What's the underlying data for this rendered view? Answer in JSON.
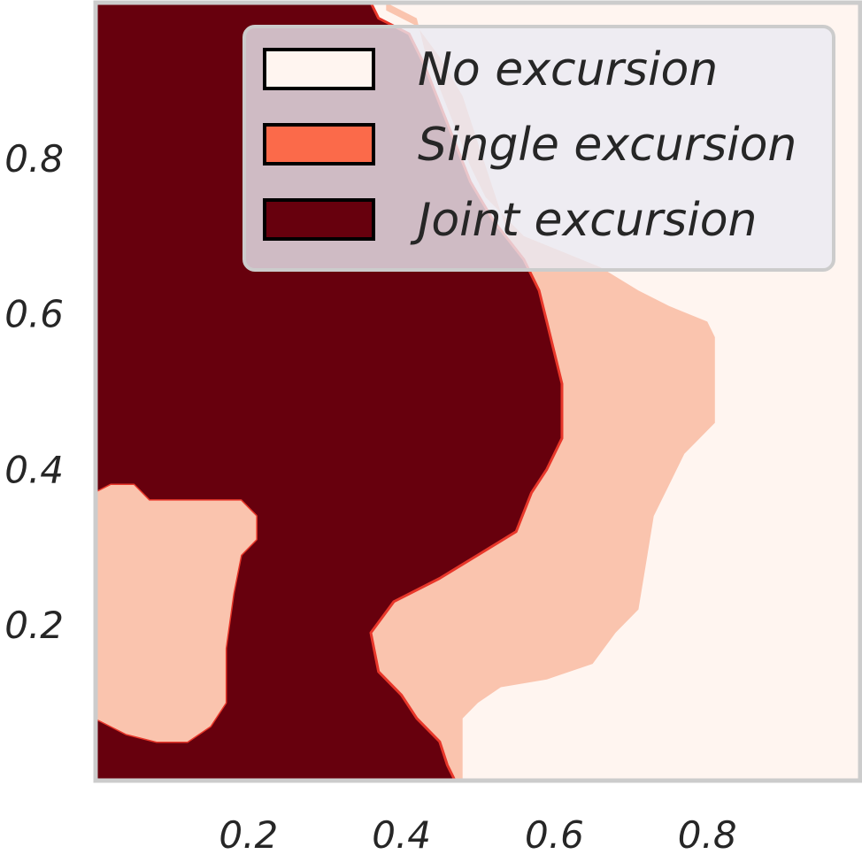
{
  "chart_data": {
    "type": "heatmap",
    "title": "",
    "xlabel": "",
    "ylabel": "",
    "xlim": [
      0,
      1
    ],
    "ylim": [
      0,
      1
    ],
    "xticks": [
      0.2,
      0.4,
      0.6,
      0.8
    ],
    "xtick_labels": [
      "0.2",
      "0.4",
      "0.6",
      "0.8"
    ],
    "yticks": [
      0.2,
      0.4,
      0.6,
      0.8
    ],
    "ytick_labels": [
      "0.2",
      "0.4",
      "0.6",
      "0.8"
    ],
    "grid": false,
    "legend_position": "top-right",
    "categories": [
      {
        "label": "No excursion",
        "color": "#fff5f0"
      },
      {
        "label": "Single excursion",
        "color": "#fb6a4a"
      },
      {
        "label": "Joint excursion",
        "color": "#67000d"
      }
    ],
    "regions": [
      {
        "category": "No excursion",
        "color": "#fff5f0",
        "boundary": [
          [
            0,
            0
          ],
          [
            1,
            0
          ],
          [
            1,
            1
          ],
          [
            0,
            1
          ]
        ]
      },
      {
        "category": "Single excursion",
        "color": "#fac4ae",
        "boundary": [
          [
            0.38,
            1.0
          ],
          [
            0.42,
            0.98
          ],
          [
            0.43,
            0.94
          ],
          [
            0.45,
            0.89
          ],
          [
            0.47,
            0.84
          ],
          [
            0.49,
            0.79
          ],
          [
            0.51,
            0.75
          ],
          [
            0.56,
            0.7
          ],
          [
            0.61,
            0.68
          ],
          [
            0.66,
            0.66
          ],
          [
            0.71,
            0.63
          ],
          [
            0.75,
            0.61
          ],
          [
            0.8,
            0.59
          ],
          [
            0.81,
            0.57
          ],
          [
            0.81,
            0.46
          ],
          [
            0.79,
            0.44
          ],
          [
            0.77,
            0.42
          ],
          [
            0.75,
            0.38
          ],
          [
            0.73,
            0.34
          ],
          [
            0.72,
            0.28
          ],
          [
            0.71,
            0.22
          ],
          [
            0.68,
            0.19
          ],
          [
            0.65,
            0.15
          ],
          [
            0.59,
            0.13
          ],
          [
            0.53,
            0.12
          ],
          [
            0.5,
            0.1
          ],
          [
            0.48,
            0.08
          ],
          [
            0.48,
            0.0
          ],
          [
            0.47,
            0.0
          ],
          [
            0.46,
            0.02
          ],
          [
            0.45,
            0.05
          ],
          [
            0.42,
            0.08
          ],
          [
            0.4,
            0.11
          ],
          [
            0.37,
            0.14
          ],
          [
            0.36,
            0.19
          ],
          [
            0.39,
            0.23
          ],
          [
            0.45,
            0.26
          ],
          [
            0.5,
            0.29
          ],
          [
            0.55,
            0.32
          ],
          [
            0.56,
            0.4
          ],
          [
            0.59,
            0.44
          ],
          [
            0.61,
            0.49
          ],
          [
            0.6,
            0.53
          ],
          [
            0.59,
            0.58
          ],
          [
            0.57,
            0.63
          ],
          [
            0.54,
            0.7
          ],
          [
            0.52,
            0.76
          ],
          [
            0.5,
            0.82
          ],
          [
            0.48,
            0.88
          ],
          [
            0.45,
            0.93
          ],
          [
            0.42,
            0.97
          ],
          [
            0.38,
            0.99
          ]
        ]
      },
      {
        "category": "Joint excursion",
        "color": "#67000d",
        "boundary": [
          [
            0,
            1.0
          ],
          [
            0.36,
            1.0
          ],
          [
            0.37,
            0.98
          ],
          [
            0.41,
            0.96
          ],
          [
            0.43,
            0.92
          ],
          [
            0.45,
            0.87
          ],
          [
            0.47,
            0.82
          ],
          [
            0.49,
            0.77
          ],
          [
            0.52,
            0.72
          ],
          [
            0.56,
            0.67
          ],
          [
            0.58,
            0.63
          ],
          [
            0.59,
            0.59
          ],
          [
            0.6,
            0.55
          ],
          [
            0.61,
            0.51
          ],
          [
            0.61,
            0.44
          ],
          [
            0.59,
            0.4
          ],
          [
            0.57,
            0.37
          ],
          [
            0.55,
            0.32
          ],
          [
            0.5,
            0.29
          ],
          [
            0.45,
            0.26
          ],
          [
            0.39,
            0.23
          ],
          [
            0.36,
            0.19
          ],
          [
            0.37,
            0.14
          ],
          [
            0.4,
            0.11
          ],
          [
            0.42,
            0.08
          ],
          [
            0.45,
            0.05
          ],
          [
            0.46,
            0.02
          ],
          [
            0.47,
            0.0
          ],
          [
            0,
            0.0
          ],
          [
            0,
            0.08
          ],
          [
            0.04,
            0.06
          ],
          [
            0.08,
            0.05
          ],
          [
            0.12,
            0.05
          ],
          [
            0.15,
            0.07
          ],
          [
            0.17,
            0.1
          ],
          [
            0.17,
            0.17
          ],
          [
            0.18,
            0.24
          ],
          [
            0.19,
            0.29
          ],
          [
            0.21,
            0.31
          ],
          [
            0.21,
            0.34
          ],
          [
            0.19,
            0.36
          ],
          [
            0.14,
            0.36
          ],
          [
            0.1,
            0.36
          ],
          [
            0.07,
            0.36
          ],
          [
            0.05,
            0.38
          ],
          [
            0.02,
            0.38
          ],
          [
            0,
            0.37
          ]
        ]
      },
      {
        "category": "Single excursion",
        "color": "#fac4ae",
        "boundary": [
          [
            0,
            0.37
          ],
          [
            0.02,
            0.38
          ],
          [
            0.05,
            0.38
          ],
          [
            0.07,
            0.36
          ],
          [
            0.1,
            0.36
          ],
          [
            0.14,
            0.36
          ],
          [
            0.19,
            0.36
          ],
          [
            0.21,
            0.34
          ],
          [
            0.21,
            0.31
          ],
          [
            0.19,
            0.29
          ],
          [
            0.18,
            0.24
          ],
          [
            0.17,
            0.17
          ],
          [
            0.17,
            0.1
          ],
          [
            0.15,
            0.07
          ],
          [
            0.12,
            0.05
          ],
          [
            0.08,
            0.05
          ],
          [
            0.04,
            0.06
          ],
          [
            0,
            0.08
          ]
        ]
      }
    ]
  }
}
